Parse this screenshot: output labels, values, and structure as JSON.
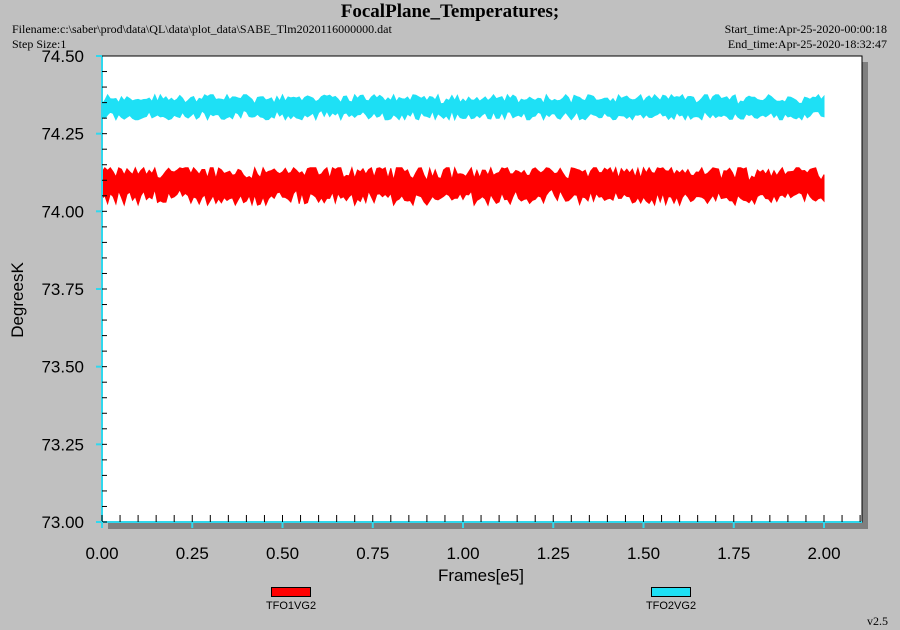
{
  "header": {
    "title": "FocalPlane_Temperatures;",
    "filename": "Filename:c:\\saber\\prod\\data\\QL\\data\\plot_data\\SABE_Tlm2020116000000.dat",
    "step_size": "Step Size:1",
    "start_time": "Start_time:Apr-25-2020-00:00:18",
    "end_time": "End_time:Apr-25-2020-18:32:47"
  },
  "version": "v2.5",
  "colors": {
    "background": "#c0c0c0",
    "plot_area": "#ffffff",
    "shadow": "#7f7f7f",
    "axis": "#2fd8ee"
  },
  "chart_data": {
    "type": "line",
    "xlabel": "Frames[e5]",
    "ylabel": "DegreesK",
    "xlim": [
      0,
      2.1
    ],
    "ylim": [
      73.0,
      74.5
    ],
    "x_ticks": [
      "0.00",
      "0.25",
      "0.50",
      "0.75",
      "1.00",
      "1.25",
      "1.50",
      "1.75",
      "2.00"
    ],
    "y_ticks": [
      "73.00",
      "73.25",
      "73.50",
      "73.75",
      "74.00",
      "74.25",
      "74.50"
    ],
    "x_range": [
      0,
      2.0
    ],
    "series": [
      {
        "name": "TFO1VG2",
        "color": "#ff0000",
        "mean": 74.085,
        "min": 74.02,
        "max": 74.14
      },
      {
        "name": "TFO2VG2",
        "color": "#1ee0f5",
        "mean": 74.335,
        "min": 74.295,
        "max": 74.375
      }
    ]
  }
}
